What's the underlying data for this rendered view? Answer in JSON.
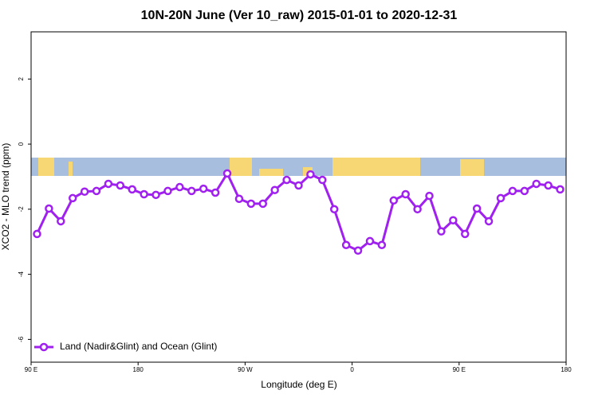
{
  "chart_data": {
    "type": "line",
    "title": "10N-20N June (Ver 10_raw)   2015-01-01 to 2020-12-31",
    "x_label": "Longitude (deg E)",
    "y_label": "XCO2 - MLO trend (ppm)",
    "x": [
      95,
      105,
      115,
      125,
      135,
      145,
      155,
      165,
      175,
      185,
      195,
      205,
      215,
      225,
      235,
      245,
      255,
      265,
      275,
      285,
      295,
      305,
      315,
      325,
      335,
      345,
      355,
      365,
      375,
      385,
      395,
      405,
      415,
      425,
      435,
      445,
      455,
      465,
      475,
      485,
      495,
      505,
      515,
      525,
      535
    ],
    "series": [
      {
        "name": "Land (Nadir&Glint) and Ocean (Glint)",
        "color": "#a020f0",
        "values": [
          -2.76,
          -1.98,
          -2.37,
          -1.66,
          -1.46,
          -1.44,
          -1.22,
          -1.27,
          -1.39,
          -1.54,
          -1.56,
          -1.44,
          -1.32,
          -1.44,
          -1.37,
          -1.49,
          -0.9,
          -1.68,
          -1.83,
          -1.83,
          -1.41,
          -1.1,
          -1.27,
          -0.93,
          -1.1,
          -2.0,
          -3.1,
          -3.27,
          -2.98,
          -3.1,
          -1.73,
          -1.54,
          -2.0,
          -1.59,
          -2.68,
          -2.34,
          -2.76,
          -1.98,
          -2.37,
          -1.66,
          -1.44,
          -1.44,
          -1.22,
          -1.27,
          -1.39
        ]
      }
    ],
    "xlim": [
      90,
      540
    ],
    "xticks": [
      {
        "value": 90,
        "label": "90 E"
      },
      {
        "value": 180,
        "label": "180"
      },
      {
        "value": 270,
        "label": "90 W"
      },
      {
        "value": 360,
        "label": "0"
      },
      {
        "value": 450,
        "label": "90 E"
      },
      {
        "value": 540,
        "label": "180"
      }
    ],
    "ylim": [
      -6.7,
      3.45
    ],
    "yticks": [
      -6,
      -4,
      -2,
      0,
      2
    ],
    "legend": "bottom-left"
  }
}
